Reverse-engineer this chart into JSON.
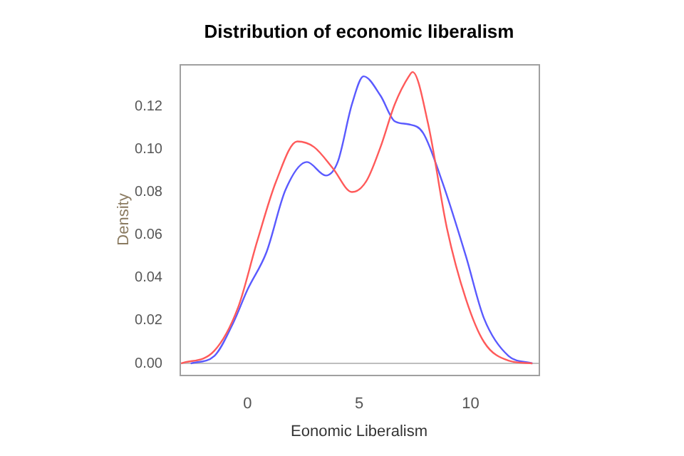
{
  "chart_data": {
    "type": "line",
    "title": "Distribution of economic liberalism",
    "xlabel": "Eonomic Liberalism",
    "ylabel": "Density",
    "xlim": [
      -3.05,
      13.05
    ],
    "ylim": [
      -0.0053,
      0.1397
    ],
    "xticks": [
      0,
      5,
      10
    ],
    "yticks": [
      {
        "value": 0,
        "label": "0.00"
      },
      {
        "value": 0.02,
        "label": "0.02"
      },
      {
        "value": 0.04,
        "label": "0.04"
      },
      {
        "value": 0.06,
        "label": "0.06"
      },
      {
        "value": 0.08,
        "label": "0.08"
      },
      {
        "value": 0.1,
        "label": "0.10"
      },
      {
        "value": 0.12,
        "label": "0.12"
      }
    ],
    "grid": false,
    "legend": false,
    "marker": "none",
    "line_style": "solid",
    "ref_lines": [
      {
        "axis": "y",
        "value": 0,
        "color": "#bebebe"
      }
    ],
    "series": [
      {
        "color": "#ff5a5a",
        "x": [
          -2.98,
          -1.5,
          -0.43,
          0.43,
          1.28,
          2.23,
          2.98,
          3.83,
          4.68,
          5.32,
          5.96,
          6.6,
          7.23,
          7.4,
          8.09,
          8.94,
          9.79,
          10.6,
          11.7,
          12.77
        ],
        "values": [
          0,
          0.0058,
          0.026,
          0.057,
          0.085,
          0.1036,
          0.101,
          0.091,
          0.08,
          0.085,
          0.101,
          0.121,
          0.134,
          0.136,
          0.112,
          0.063,
          0.03,
          0.01,
          0.0013,
          0
        ]
      },
      {
        "color": "#5a5aff",
        "x": [
          -2.55,
          -1.49,
          -0.64,
          0,
          0.85,
          1.7,
          2.66,
          3.51,
          4.04,
          4.68,
          5.2,
          5.96,
          6.6,
          7.23,
          7.87,
          8.72,
          9.79,
          10.6,
          11.7,
          12.77
        ],
        "values": [
          0,
          0.0035,
          0.019,
          0.0345,
          0.052,
          0.081,
          0.094,
          0.0877,
          0.094,
          0.121,
          0.134,
          0.125,
          0.113,
          0.1116,
          0.1076,
          0.085,
          0.05,
          0.021,
          0.0035,
          0
        ]
      }
    ]
  }
}
